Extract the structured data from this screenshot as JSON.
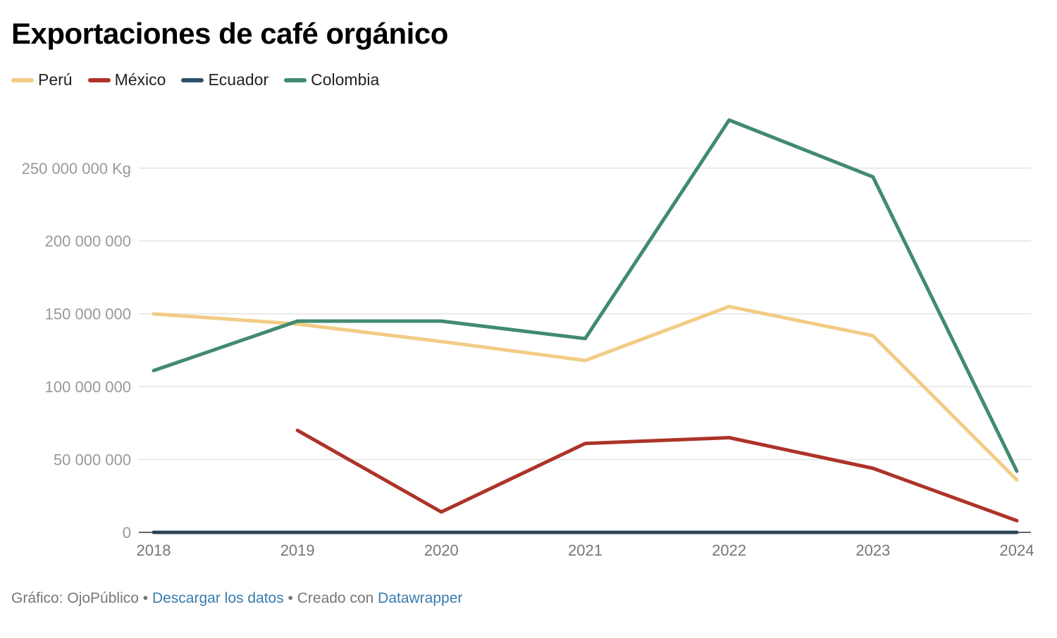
{
  "chart_data": {
    "type": "line",
    "title": "Exportaciones de café orgánico",
    "x": [
      "2018",
      "2019",
      "2020",
      "2021",
      "2022",
      "2023",
      "2024"
    ],
    "ylim": [
      0,
      290000000
    ],
    "yticks": [
      0,
      50000000,
      100000000,
      150000000,
      200000000,
      250000000
    ],
    "ytick_labels": [
      "0",
      "50 000 000",
      "100 000 000",
      "150 000 000",
      "200 000 000",
      "250 000 000 Kg"
    ],
    "grid": true,
    "legend_position": "top-left",
    "series": [
      {
        "name": "Perú",
        "color": "#f2cc85",
        "values": [
          150000000,
          143000000,
          131000000,
          118000000,
          155000000,
          135000000,
          36000000
        ]
      },
      {
        "name": "México",
        "color": "#ad3329",
        "values": [
          null,
          70000000,
          14000000,
          61000000,
          65000000,
          44000000,
          8000000
        ]
      },
      {
        "name": "Ecuador",
        "color": "#2d5068",
        "values": [
          0,
          0,
          0,
          0,
          0,
          0,
          0
        ]
      },
      {
        "name": "Colombia",
        "color": "#428a72",
        "values": [
          111000000,
          145000000,
          145000000,
          133000000,
          283000000,
          244000000,
          42000000
        ]
      }
    ]
  },
  "footer": {
    "credit": "Gráfico: OjoPúblico",
    "separator1": " • ",
    "download_link": "Descargar los datos",
    "separator2": " • Creado con ",
    "tool_link": "Datawrapper"
  }
}
